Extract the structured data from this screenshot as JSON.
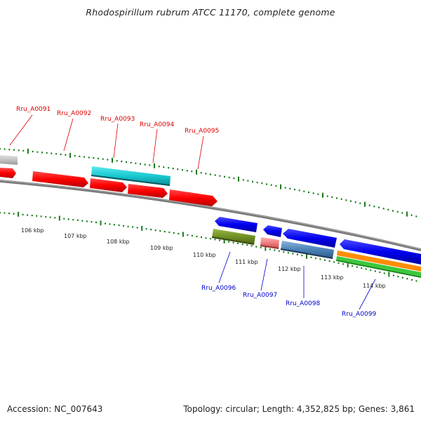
{
  "title": "Rhodospirillum rubrum ATCC 11170, complete genome",
  "footer": {
    "accession": "Accession: NC_007643",
    "stats": "Topology: circular; Length: 4,352,825 bp; Genes: 3,861"
  },
  "colors": {
    "top_labels": "#dd0000",
    "bottom_labels": "#0000cc",
    "ticks": "#1a7a1a",
    "backbone": "#7a7a7a"
  },
  "scale_labels": [
    "106 kbp",
    "107 kbp",
    "108 kbp",
    "109 kbp",
    "110 kbp",
    "111 kbp",
    "112 kbp",
    "113 kbp",
    "114 kbp"
  ],
  "top_genes": [
    "Rru_A0091",
    "Rru_A0092",
    "Rru_A0093",
    "Rru_A0094",
    "Rru_A0095"
  ],
  "bottom_genes": [
    "Rru_A0096",
    "Rru_A0097",
    "Rru_A0098",
    "Rru_A0099"
  ]
}
